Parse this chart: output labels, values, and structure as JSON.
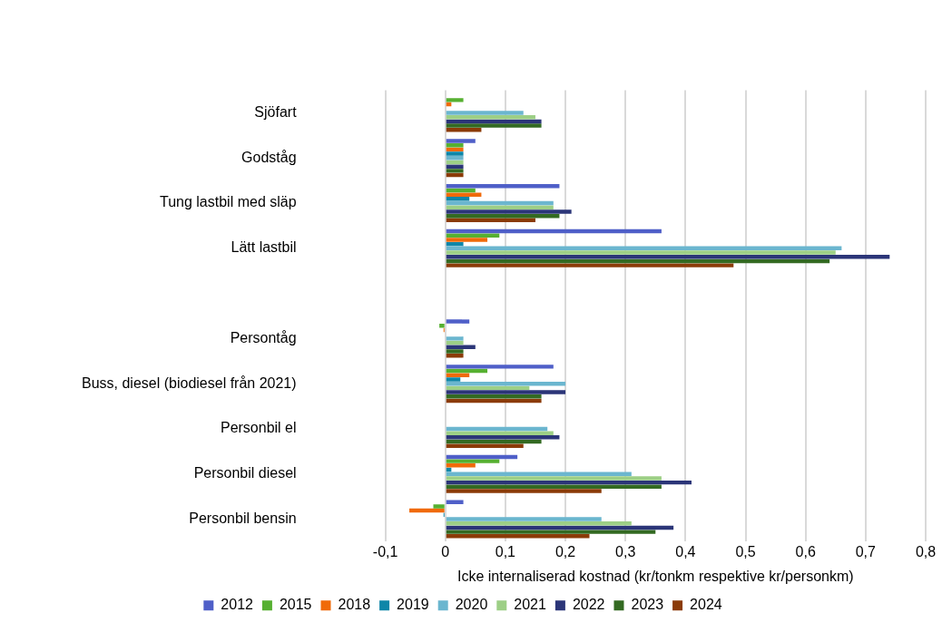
{
  "chart_data": {
    "type": "bar",
    "orientation": "horizontal",
    "xlabel": "Icke internaliserad kostnad (kr/tonkm respektive kr/personkm)",
    "categories": [
      "Sjöfart",
      "Godståg",
      "Tung lastbil med släp",
      "Lätt lastbil",
      null,
      "Persontåg",
      "Buss, diesel (biodiesel från 2021)",
      "Personbil el",
      "Personbil diesel",
      "Personbil bensin"
    ],
    "series": [
      {
        "name": "2012",
        "color": "#4f5fc8",
        "values": [
          null,
          0.05,
          0.19,
          0.36,
          null,
          0.04,
          0.18,
          null,
          0.12,
          0.03
        ]
      },
      {
        "name": "2015",
        "color": "#56b031",
        "values": [
          0.03,
          0.03,
          0.05,
          0.09,
          null,
          -0.01,
          0.07,
          null,
          0.09,
          -0.02
        ]
      },
      {
        "name": "2018",
        "color": "#f06a0a",
        "values": [
          0.01,
          0.03,
          0.06,
          0.07,
          null,
          -0.003,
          0.04,
          null,
          0.05,
          -0.06
        ]
      },
      {
        "name": "2019",
        "color": "#0f86a8",
        "values": [
          null,
          0.03,
          0.04,
          0.03,
          null,
          null,
          0.025,
          null,
          0.01,
          -0.003
        ]
      },
      {
        "name": "2020",
        "color": "#6bb6cf",
        "values": [
          0.13,
          0.03,
          0.18,
          0.66,
          null,
          0.03,
          0.2,
          0.17,
          0.31,
          0.26
        ]
      },
      {
        "name": "2021",
        "color": "#9dcf86",
        "values": [
          0.15,
          0.03,
          0.18,
          0.65,
          null,
          0.03,
          0.14,
          0.18,
          0.36,
          0.31
        ]
      },
      {
        "name": "2022",
        "color": "#2b3578",
        "values": [
          0.16,
          0.03,
          0.21,
          0.74,
          null,
          0.05,
          0.2,
          0.19,
          0.41,
          0.38
        ]
      },
      {
        "name": "2023",
        "color": "#336a22",
        "values": [
          0.16,
          0.03,
          0.19,
          0.64,
          null,
          0.03,
          0.16,
          0.16,
          0.36,
          0.35
        ]
      },
      {
        "name": "2024",
        "color": "#8b3b08",
        "values": [
          0.06,
          0.03,
          0.15,
          0.48,
          null,
          0.03,
          0.16,
          0.13,
          0.26,
          0.24
        ]
      }
    ],
    "xlim": [
      -0.1,
      0.8
    ],
    "xticks": [
      {
        "value": -0.1,
        "label": "-0,1"
      },
      0,
      {
        "value": 0.1,
        "label": "0,1"
      },
      {
        "value": 0.2,
        "label": "0,2"
      },
      {
        "value": 0.3,
        "label": "0,3"
      },
      {
        "value": 0.4,
        "label": "0,4"
      },
      {
        "value": 0.5,
        "label": "0,5"
      },
      {
        "value": 0.6,
        "label": "0,6"
      },
      {
        "value": 0.7,
        "label": "0,7"
      },
      {
        "value": 0.8,
        "label": "0,8"
      }
    ],
    "grid": "x",
    "legend": "bottom"
  }
}
